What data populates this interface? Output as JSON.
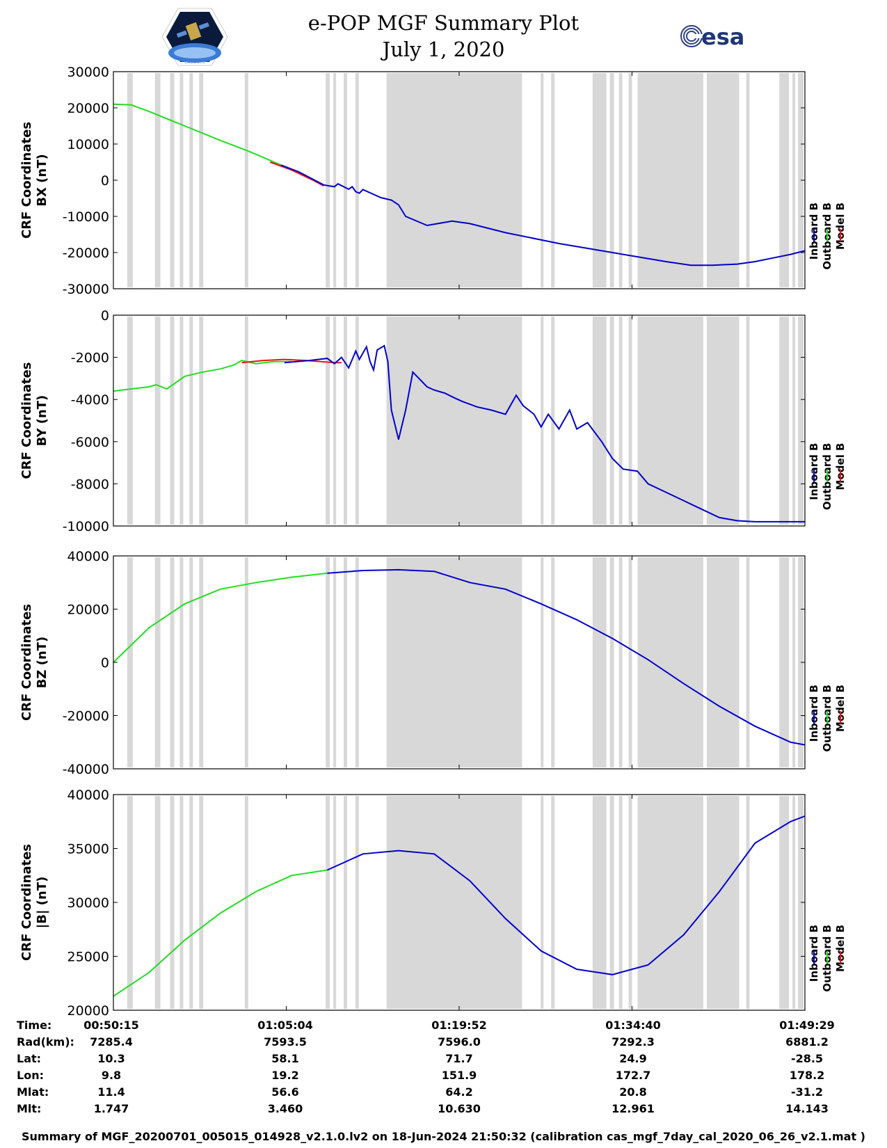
{
  "header": {
    "title_line1": "e-POP MGF Summary Plot",
    "title_line2": "July 1, 2020",
    "left_logo_caption": "CASSIOPE",
    "right_logo_text": "esa"
  },
  "colors": {
    "inboard": "#0000cc",
    "outboard": "#22dd22",
    "model": "#ee1111",
    "shade": "#d8d8d8"
  },
  "chart_data": [
    {
      "type": "line",
      "ylabel_line1": "CRF Coordinates",
      "ylabel_line2": "BX (nT)",
      "ylim": [
        -30000,
        30000
      ],
      "yticks": [
        "30000",
        "20000",
        "10000",
        "0",
        "-10000",
        "-20000",
        "-30000"
      ],
      "legend": [
        "Inboard B",
        "Outboard B",
        "Model B"
      ],
      "series": [
        {
          "name": "Outboard B",
          "x": [
            0,
            0.05,
            0.1,
            0.2,
            0.3,
            0.38,
            0.47
          ],
          "values": [
            21000,
            20800,
            19000,
            15000,
            11000,
            8000,
            4200
          ]
        },
        {
          "name": "Model B",
          "x": [
            0.44,
            0.5,
            0.56,
            0.59
          ],
          "values": [
            5000,
            2800,
            0,
            -1600
          ]
        },
        {
          "name": "Inboard B",
          "x": [
            0.47,
            0.52,
            0.59,
            0.62,
            0.63,
            0.66,
            0.67,
            0.68,
            0.69,
            0.7,
            0.75,
            0.78,
            0.8,
            0.82,
            0.88,
            0.95,
            1.0,
            1.1,
            1.25,
            1.4,
            1.55,
            1.62,
            1.68,
            1.75,
            1.8,
            1.85,
            1.9,
            1.94
          ],
          "values": [
            4200,
            2300,
            -1300,
            -1800,
            -1000,
            -2500,
            -1800,
            -3200,
            -3600,
            -2600,
            -4800,
            -5500,
            -6800,
            -10000,
            -12500,
            -11300,
            -12000,
            -14500,
            -17500,
            -20000,
            -22500,
            -23500,
            -23500,
            -23200,
            -22500,
            -21500,
            -20500,
            -19500
          ]
        }
      ]
    },
    {
      "type": "line",
      "ylabel_line1": "CRF Coordinates",
      "ylabel_line2": "BY (nT)",
      "ylim": [
        -10000,
        0
      ],
      "yticks": [
        "0",
        "-2000",
        "-4000",
        "-6000",
        "-8000",
        "-10000"
      ],
      "legend": [
        "Inboard B",
        "Outboard B",
        "Model B"
      ],
      "series": [
        {
          "name": "Outboard B",
          "x": [
            0,
            0.05,
            0.1,
            0.12,
            0.15,
            0.2,
            0.25,
            0.3,
            0.34,
            0.36,
            0.4,
            0.45,
            0.5
          ],
          "values": [
            -3600,
            -3500,
            -3400,
            -3300,
            -3500,
            -2900,
            -2700,
            -2550,
            -2350,
            -2150,
            -2300,
            -2200,
            -2200
          ]
        },
        {
          "name": "Model B",
          "x": [
            0.36,
            0.42,
            0.48,
            0.54,
            0.62,
            0.64
          ],
          "values": [
            -2250,
            -2150,
            -2100,
            -2150,
            -2250,
            -2250
          ]
        },
        {
          "name": "Inboard B",
          "x": [
            0.48,
            0.55,
            0.6,
            0.62,
            0.64,
            0.66,
            0.68,
            0.69,
            0.71,
            0.72,
            0.73,
            0.74,
            0.76,
            0.77,
            0.78,
            0.8,
            0.82,
            0.84,
            0.88,
            0.9,
            0.93,
            0.96,
            0.98,
            1.02,
            1.06,
            1.1,
            1.13,
            1.15,
            1.18,
            1.2,
            1.22,
            1.25,
            1.28,
            1.3,
            1.33,
            1.37,
            1.4,
            1.43,
            1.47,
            1.5,
            1.55,
            1.6,
            1.65,
            1.7,
            1.75,
            1.8,
            1.85,
            1.9,
            1.94
          ],
          "values": [
            -2250,
            -2150,
            -2050,
            -2300,
            -2000,
            -2500,
            -1700,
            -2100,
            -1500,
            -2200,
            -2600,
            -1650,
            -1450,
            -2200,
            -4500,
            -5900,
            -4500,
            -2700,
            -3400,
            -3550,
            -3700,
            -3950,
            -4100,
            -4350,
            -4500,
            -4700,
            -3800,
            -4300,
            -4700,
            -5300,
            -4700,
            -5400,
            -4500,
            -5400,
            -5100,
            -6000,
            -6800,
            -7300,
            -7400,
            -8000,
            -8400,
            -8800,
            -9200,
            -9600,
            -9750,
            -9800,
            -9800,
            -9800,
            -9800
          ]
        }
      ]
    },
    {
      "type": "line",
      "ylabel_line1": "CRF Coordinates",
      "ylabel_line2": "BZ (nT)",
      "ylim": [
        -40000,
        40000
      ],
      "yticks": [
        "40000",
        "20000",
        "0",
        "-20000",
        "-40000"
      ],
      "legend": [
        "Inboard B",
        "Outboard B",
        "Model B"
      ],
      "series": [
        {
          "name": "Outboard B",
          "x": [
            0,
            0.1,
            0.2,
            0.3,
            0.4,
            0.5,
            0.6
          ],
          "values": [
            0,
            13000,
            22000,
            27500,
            30000,
            32000,
            33500
          ]
        },
        {
          "name": "Inboard B",
          "x": [
            0.6,
            0.7,
            0.8,
            0.9,
            1.0,
            1.1,
            1.2,
            1.3,
            1.4,
            1.5,
            1.6,
            1.7,
            1.8,
            1.9,
            1.94
          ],
          "values": [
            33500,
            34500,
            34800,
            34200,
            30000,
            27500,
            22000,
            16000,
            9000,
            1000,
            -8000,
            -16500,
            -24000,
            -30000,
            -31000
          ]
        }
      ]
    },
    {
      "type": "line",
      "ylabel_line1": "CRF Coordinates",
      "ylabel_line2": "|B| (nT)",
      "ylim": [
        20000,
        40000
      ],
      "yticks": [
        "40000",
        "35000",
        "30000",
        "25000",
        "20000"
      ],
      "legend": [
        "Inboard B",
        "Outboard B",
        "Model B"
      ],
      "series": [
        {
          "name": "Outboard B",
          "x": [
            0,
            0.1,
            0.2,
            0.3,
            0.4,
            0.5,
            0.6
          ],
          "values": [
            21300,
            23500,
            26500,
            29000,
            31000,
            32500,
            33000
          ]
        },
        {
          "name": "Inboard B",
          "x": [
            0.6,
            0.7,
            0.8,
            0.9,
            1.0,
            1.1,
            1.2,
            1.3,
            1.4,
            1.5,
            1.6,
            1.7,
            1.8,
            1.9,
            1.94
          ],
          "values": [
            33000,
            34500,
            34800,
            34500,
            32000,
            28500,
            25500,
            23800,
            23300,
            24200,
            27000,
            31000,
            35500,
            37500,
            38000
          ]
        }
      ]
    }
  ],
  "gray_bands": [
    {
      "start": 0.02,
      "end": 0.028
    },
    {
      "start": 0.06,
      "end": 0.068
    },
    {
      "start": 0.082,
      "end": 0.088
    },
    {
      "start": 0.096,
      "end": 0.101
    },
    {
      "start": 0.11,
      "end": 0.115
    },
    {
      "start": 0.124,
      "end": 0.13
    },
    {
      "start": 0.19,
      "end": 0.195
    },
    {
      "start": 0.307,
      "end": 0.313
    },
    {
      "start": 0.318,
      "end": 0.322
    },
    {
      "start": 0.333,
      "end": 0.338
    },
    {
      "start": 0.35,
      "end": 0.355
    },
    {
      "start": 0.395,
      "end": 0.591
    },
    {
      "start": 0.618,
      "end": 0.622
    },
    {
      "start": 0.633,
      "end": 0.638
    },
    {
      "start": 0.693,
      "end": 0.713
    },
    {
      "start": 0.718,
      "end": 0.724
    },
    {
      "start": 0.731,
      "end": 0.736
    },
    {
      "start": 0.745,
      "end": 0.75
    },
    {
      "start": 0.758,
      "end": 0.853
    },
    {
      "start": 0.858,
      "end": 0.905
    },
    {
      "start": 0.915,
      "end": 0.92
    },
    {
      "start": 0.963,
      "end": 0.977
    },
    {
      "start": 0.982,
      "end": 0.986
    },
    {
      "start": 0.99,
      "end": 0.998
    }
  ],
  "info": {
    "rows": [
      {
        "label": "Time:",
        "values": [
          "00:50:15",
          "01:05:04",
          "01:19:52",
          "01:34:40",
          "01:49:29"
        ]
      },
      {
        "label": "Rad(km):",
        "values": [
          "7285.4",
          "7593.5",
          "7596.0",
          "7292.3",
          "6881.2"
        ]
      },
      {
        "label": "Lat:",
        "values": [
          "10.3",
          "58.1",
          "71.7",
          "24.9",
          "-28.5"
        ]
      },
      {
        "label": "Lon:",
        "values": [
          "9.8",
          "19.2",
          "151.9",
          "172.7",
          "178.2"
        ]
      },
      {
        "label": "Mlat:",
        "values": [
          "11.4",
          "56.6",
          "64.2",
          "20.8",
          "-31.2"
        ]
      },
      {
        "label": "Mlt:",
        "values": [
          "1.747",
          "3.460",
          "10.630",
          "12.961",
          "14.143"
        ]
      }
    ]
  },
  "footer": {
    "text": "Summary of MGF_20200701_005015_014928_v2.1.0.lv2 on 18-Jun-2024 21:50:32 (calibration cas_mgf_7day_cal_2020_06_26_v2.1.mat )"
  }
}
